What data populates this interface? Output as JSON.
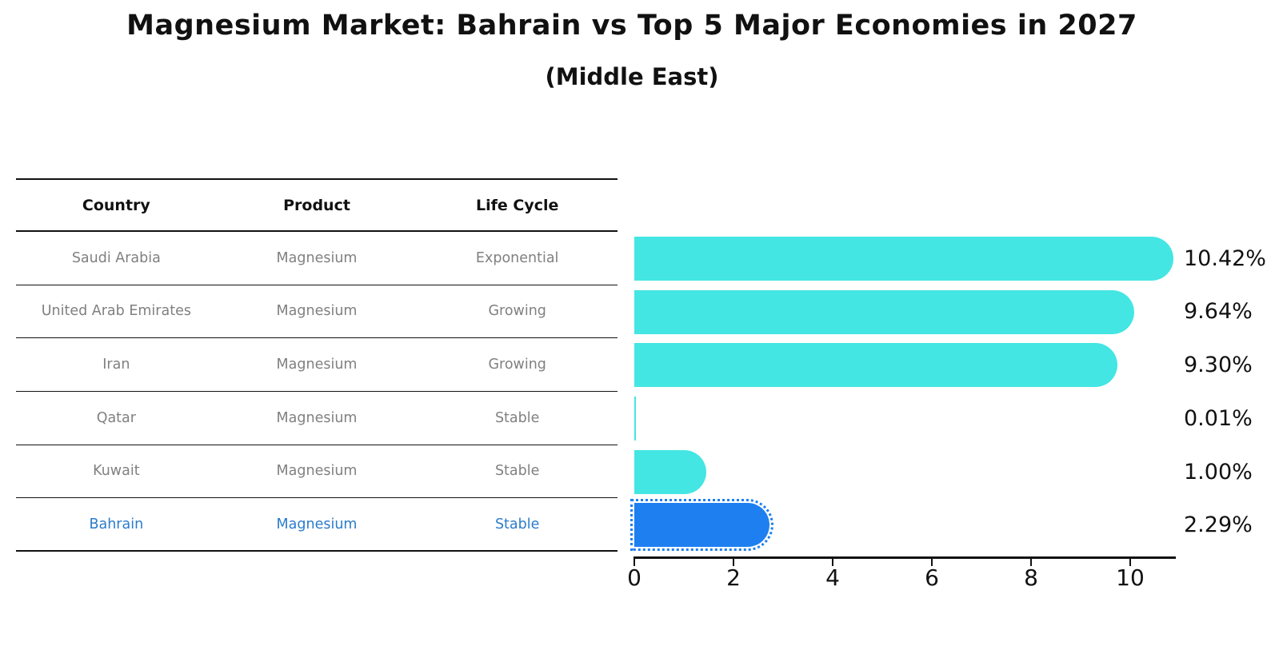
{
  "title": "Magnesium Market: Bahrain vs Top 5 Major Economies in 2027",
  "subtitle": "(Middle East)",
  "table": {
    "columns": [
      "Country",
      "Product",
      "Life Cycle"
    ]
  },
  "chart_data": {
    "type": "bar",
    "orientation": "horizontal",
    "title": "Magnesium Market: Bahrain vs Top 5 Major Economies in 2027",
    "subtitle": "(Middle East)",
    "xlabel": "",
    "ylabel": "",
    "xlim": [
      0,
      11
    ],
    "x_ticks": [
      0,
      2,
      4,
      6,
      8,
      10
    ],
    "grid": false,
    "legend": false,
    "categories": [
      "Saudi Arabia",
      "United Arab Emirates",
      "Iran",
      "Qatar",
      "Kuwait",
      "Bahrain"
    ],
    "values": [
      10.42,
      9.64,
      9.3,
      0.01,
      1.0,
      2.29
    ],
    "rows": [
      {
        "country": "Saudi Arabia",
        "product": "Magnesium",
        "life_cycle": "Exponential",
        "value": 10.42,
        "value_label": "10.42%",
        "highlight": false
      },
      {
        "country": "United Arab Emirates",
        "product": "Magnesium",
        "life_cycle": "Growing",
        "value": 9.64,
        "value_label": "9.64%",
        "highlight": false
      },
      {
        "country": "Iran",
        "product": "Magnesium",
        "life_cycle": "Growing",
        "value": 9.3,
        "value_label": "9.30%",
        "highlight": false
      },
      {
        "country": "Qatar",
        "product": "Magnesium",
        "life_cycle": "Stable",
        "value": 0.01,
        "value_label": "0.01%",
        "highlight": false
      },
      {
        "country": "Kuwait",
        "product": "Magnesium",
        "life_cycle": "Stable",
        "value": 1.0,
        "value_label": "1.00%",
        "highlight": false
      },
      {
        "country": "Bahrain",
        "product": "Magnesium",
        "life_cycle": "Stable",
        "value": 2.29,
        "value_label": "2.29%",
        "highlight": true
      }
    ],
    "colors": {
      "bar": "#43e6e3",
      "highlight_bar": "#1e7ff0",
      "highlight_text": "#2b7ccc",
      "row_text": "#808080",
      "axis_text": "#111111"
    }
  }
}
